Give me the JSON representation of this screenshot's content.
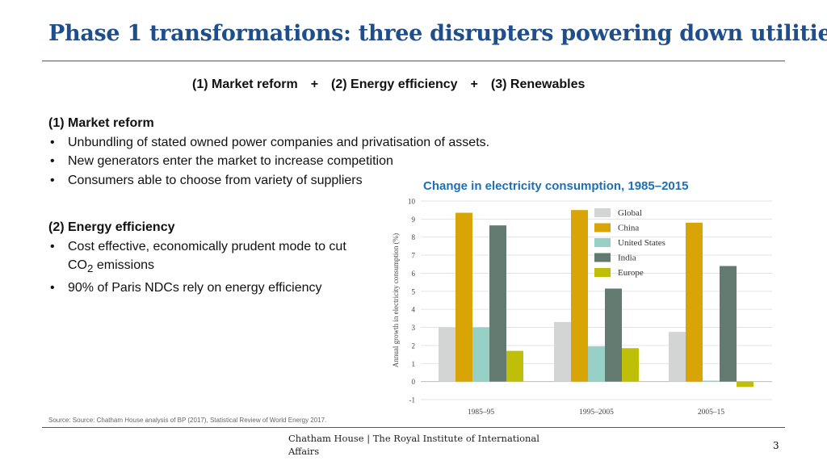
{
  "slide": {
    "title_bold": "Phase 1 transformations:",
    "title_rest": "three disrupters powering down utilities"
  },
  "equation": {
    "term1": "(1) Market reform",
    "plus": "+",
    "term2": "(2) Energy efficiency",
    "term3": "(3) Renewables"
  },
  "section1": {
    "heading": "(1) Market reform",
    "bullets": [
      "Unbundling of stated owned power companies and privatisation of assets.",
      "New generators enter the market to increase competition",
      "Consumers able to choose from variety of suppliers"
    ]
  },
  "section2": {
    "heading": "(2) Energy efficiency",
    "bullet1_pre": "Cost effective, economically prudent mode to cut CO",
    "bullet1_sub": "2",
    "bullet1_post": " emissions",
    "bullet2": "90% of Paris NDCs rely on energy efficiency"
  },
  "chart_data": {
    "type": "bar",
    "title": "Change in electricity consumption, 1985–2015",
    "ylabel": "Annual growth in electricity consumption (%)",
    "xlabel": "",
    "ylim": [
      -1,
      10
    ],
    "yticks": [
      -1,
      0,
      1,
      2,
      3,
      4,
      5,
      6,
      7,
      8,
      9,
      10
    ],
    "grid": true,
    "legend_position": "top-right",
    "categories": [
      "1985–95",
      "1995–2005",
      "2005–15"
    ],
    "series": [
      {
        "name": "Global",
        "color": "#d3d5d4",
        "values": [
          3.0,
          3.3,
          2.75
        ]
      },
      {
        "name": "China",
        "color": "#d9a406",
        "values": [
          9.35,
          9.5,
          8.8
        ]
      },
      {
        "name": "United States",
        "color": "#96d0c6",
        "values": [
          3.0,
          1.95,
          0.05
        ]
      },
      {
        "name": "India",
        "color": "#637a70",
        "values": [
          8.65,
          5.15,
          6.4
        ]
      },
      {
        "name": "Europe",
        "color": "#bfbf0a",
        "values": [
          1.7,
          1.85,
          -0.3
        ]
      }
    ]
  },
  "source": "Source: Source: Chatham House analysis of BP (2017), Statistical Review of World Energy 2017.",
  "footer": {
    "org": "Chatham House  |  The Royal Institute of International Affairs",
    "page": "3"
  }
}
